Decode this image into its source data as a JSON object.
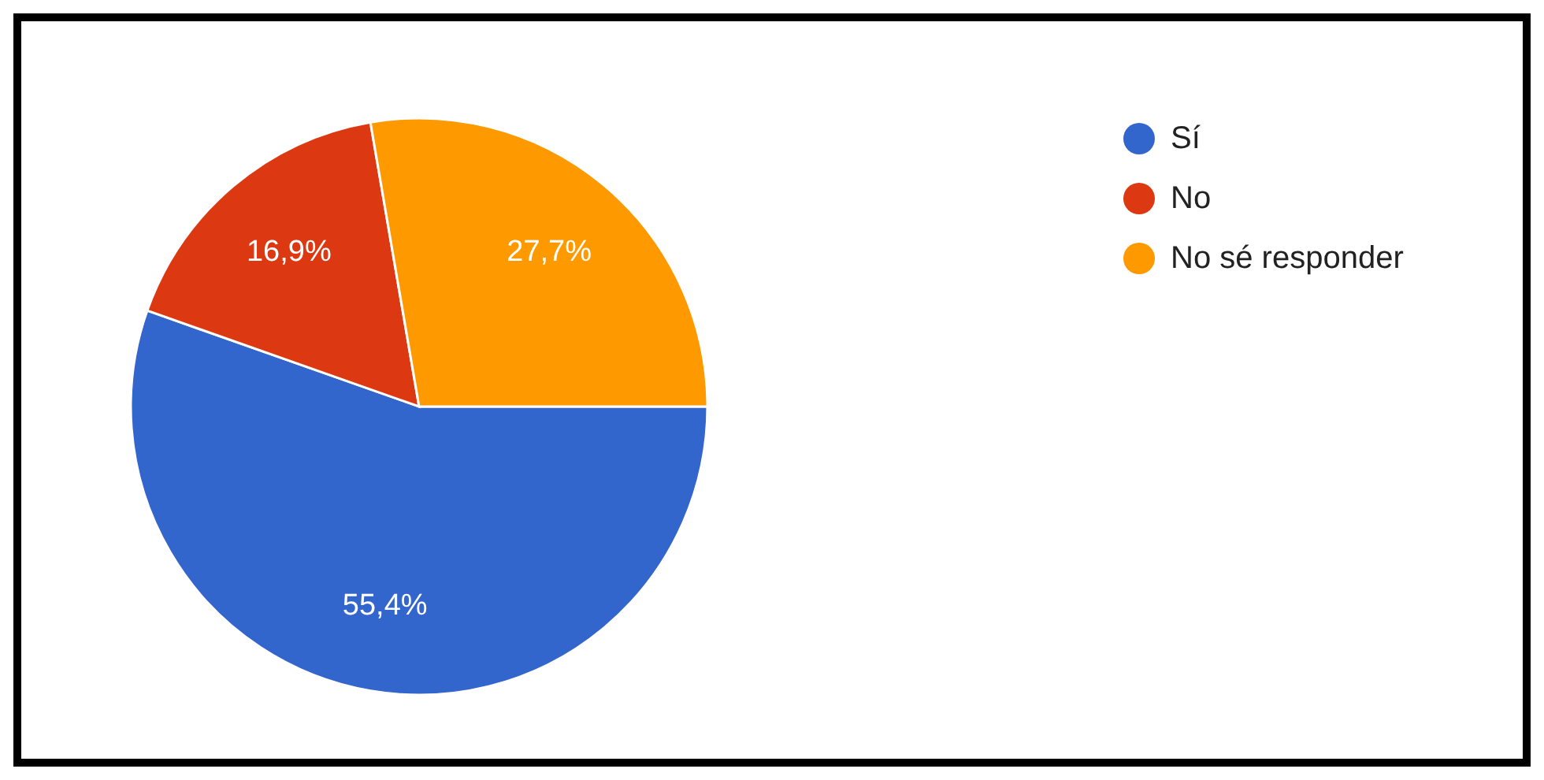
{
  "chart_data": {
    "type": "pie",
    "categories": [
      "Sí",
      "No",
      "No sé responder"
    ],
    "values": [
      55.4,
      16.9,
      27.7
    ],
    "colors": [
      "#3366cc",
      "#dc3912",
      "#ff9900"
    ],
    "value_labels": [
      "55,4%",
      "16,9%",
      "27,7%"
    ],
    "legend": "top right"
  }
}
